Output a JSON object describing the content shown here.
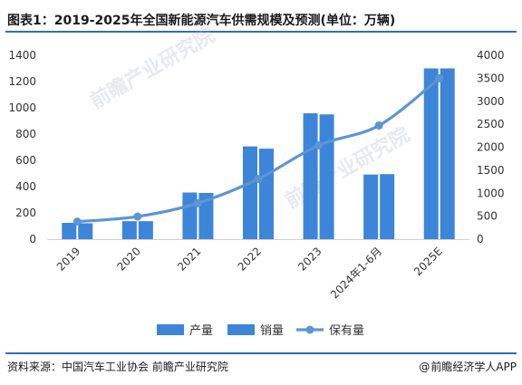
{
  "header": {
    "title": "图表1：2019-2025年全国新能源汽车供需规模及预测(单位：万辆)"
  },
  "footer": {
    "source": "资料来源：中国汽车工业协会 前瞻产业研究院",
    "brand": "前瞻经济学人APP",
    "brand_icon": "at-icon"
  },
  "watermark": {
    "text": "前瞻产业研究院"
  },
  "colors": {
    "bar_production": "#3d85d8",
    "bar_sales": "#3d85d8",
    "line_stock": "#5b95d6",
    "accent": "#2f6eb6"
  },
  "chart_data": {
    "type": "bar",
    "categories": [
      "2019",
      "2020",
      "2021",
      "2022",
      "2023",
      "2024年1-6月",
      "2025E"
    ],
    "series": [
      {
        "name": "产量",
        "type": "bar",
        "axis": "left",
        "values": [
          124,
          137,
          355,
          706,
          958,
          492,
          1300
        ]
      },
      {
        "name": "销量",
        "type": "bar",
        "axis": "left",
        "values": [
          121,
          137,
          352,
          689,
          950,
          495,
          1300
        ]
      },
      {
        "name": "保有量",
        "type": "line",
        "axis": "right",
        "values": [
          381,
          492,
          784,
          1310,
          2041,
          2472,
          3500
        ]
      }
    ],
    "y_left": {
      "min": 0,
      "max": 1400,
      "ticks": [
        0,
        200,
        400,
        600,
        800,
        1000,
        1200,
        1400
      ]
    },
    "y_right": {
      "min": 0,
      "max": 4000,
      "ticks": [
        0,
        500,
        1000,
        1500,
        2000,
        2500,
        3000,
        3500,
        4000
      ]
    },
    "grid": false,
    "legend_position": "bottom"
  }
}
